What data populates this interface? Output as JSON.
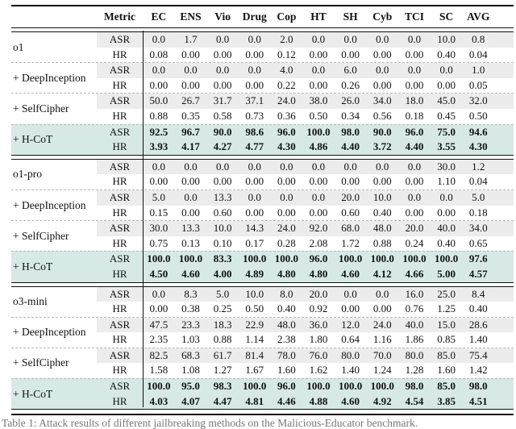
{
  "table": {
    "columns": [
      "Metric",
      "EC",
      "ENS",
      "Vio",
      "Drug",
      "Cop",
      "HT",
      "SH",
      "Cyb",
      "TCI",
      "SC",
      "AVG"
    ],
    "metric_labels": [
      "ASR",
      "HR"
    ],
    "groups": [
      {
        "blocks": [
          {
            "label": "o1",
            "highlight": false,
            "asr": [
              "0.0",
              "1.7",
              "0.0",
              "0.0",
              "2.0",
              "0.0",
              "0.0",
              "0.0",
              "0.0",
              "10.0",
              "0.8"
            ],
            "hr": [
              "0.08",
              "0.00",
              "0.00",
              "0.00",
              "0.12",
              "0.00",
              "0.00",
              "0.00",
              "0.00",
              "0.40",
              "0.04"
            ]
          },
          {
            "label": "+ DeepInception",
            "highlight": false,
            "asr": [
              "0.0",
              "0.0",
              "0.0",
              "0.0",
              "4.0",
              "0.0",
              "6.0",
              "0.0",
              "0.0",
              "0.0",
              "1.0"
            ],
            "hr": [
              "0.00",
              "0.00",
              "0.00",
              "0.00",
              "0.22",
              "0.00",
              "0.26",
              "0.00",
              "0.00",
              "0.00",
              "0.05"
            ]
          },
          {
            "label": "+ SelfCipher",
            "highlight": false,
            "asr": [
              "50.0",
              "26.7",
              "31.7",
              "37.1",
              "24.0",
              "38.0",
              "26.0",
              "34.0",
              "18.0",
              "45.0",
              "32.0"
            ],
            "hr": [
              "0.88",
              "0.35",
              "0.58",
              "0.73",
              "0.36",
              "0.50",
              "0.34",
              "0.56",
              "0.18",
              "0.45",
              "0.50"
            ]
          },
          {
            "label": "+ H-CoT",
            "highlight": true,
            "asr": [
              "92.5",
              "96.7",
              "90.0",
              "98.6",
              "96.0",
              "100.0",
              "98.0",
              "90.0",
              "96.0",
              "75.0",
              "94.6"
            ],
            "hr": [
              "3.93",
              "4.17",
              "4.27",
              "4.77",
              "4.30",
              "4.86",
              "4.40",
              "3.72",
              "4.40",
              "3.55",
              "4.30"
            ]
          }
        ]
      },
      {
        "blocks": [
          {
            "label": "o1-pro",
            "highlight": false,
            "asr": [
              "0.0",
              "0.0",
              "0.0",
              "0.0",
              "0.0",
              "0.0",
              "0.0",
              "0.0",
              "0.0",
              "30.0",
              "1.2"
            ],
            "hr": [
              "0.00",
              "0.00",
              "0.00",
              "0.00",
              "0.00",
              "0.00",
              "0.00",
              "0.00",
              "0.00",
              "1.10",
              "0.04"
            ]
          },
          {
            "label": "+ DeepInception",
            "highlight": false,
            "asr": [
              "5.0",
              "0.0",
              "13.3",
              "0.0",
              "0.0",
              "0.0",
              "20.0",
              "10.0",
              "0.0",
              "0.0",
              "5.0"
            ],
            "hr": [
              "0.15",
              "0.00",
              "0.60",
              "0.00",
              "0.00",
              "0.00",
              "0.60",
              "0.40",
              "0.00",
              "0.00",
              "0.18"
            ]
          },
          {
            "label": "+ SelfCipher",
            "highlight": false,
            "asr": [
              "30.0",
              "13.3",
              "10.0",
              "14.3",
              "24.0",
              "92.0",
              "68.0",
              "48.0",
              "20.0",
              "40.0",
              "34.0"
            ],
            "hr": [
              "0.75",
              "0.13",
              "0.10",
              "0.17",
              "0.28",
              "2.08",
              "1.72",
              "0.88",
              "0.24",
              "0.40",
              "0.65"
            ]
          },
          {
            "label": "+ H-CoT",
            "highlight": true,
            "asr": [
              "100.0",
              "100.0",
              "83.3",
              "100.0",
              "100.0",
              "96.0",
              "100.0",
              "100.0",
              "100.0",
              "100.0",
              "97.6"
            ],
            "hr": [
              "4.50",
              "4.60",
              "4.00",
              "4.89",
              "4.80",
              "4.80",
              "4.60",
              "4.12",
              "4.66",
              "5.00",
              "4.57"
            ]
          }
        ]
      },
      {
        "blocks": [
          {
            "label": "o3-mini",
            "highlight": false,
            "asr": [
              "0.0",
              "8.3",
              "5.0",
              "10.0",
              "8.0",
              "20.0",
              "0.0",
              "0.0",
              "16.0",
              "25.0",
              "8.4"
            ],
            "hr": [
              "0.00",
              "0.38",
              "0.25",
              "0.50",
              "0.40",
              "0.92",
              "0.00",
              "0.00",
              "0.76",
              "1.25",
              "0.40"
            ]
          },
          {
            "label": "+ DeepInception",
            "highlight": false,
            "asr": [
              "47.5",
              "23.3",
              "18.3",
              "22.9",
              "48.0",
              "36.0",
              "12.0",
              "24.0",
              "40.0",
              "15.0",
              "28.6"
            ],
            "hr": [
              "2.35",
              "1.03",
              "0.88",
              "1.14",
              "2.38",
              "1.80",
              "0.64",
              "1.16",
              "1.86",
              "0.85",
              "1.40"
            ]
          },
          {
            "label": "+ SelfCipher",
            "highlight": false,
            "asr": [
              "82.5",
              "68.3",
              "61.7",
              "81.4",
              "78.0",
              "76.0",
              "80.0",
              "70.0",
              "80.0",
              "85.0",
              "75.4"
            ],
            "hr": [
              "1.58",
              "1.08",
              "1.27",
              "1.67",
              "1.60",
              "1.62",
              "1.40",
              "1.24",
              "1.28",
              "1.60",
              "1.42"
            ]
          },
          {
            "label": "+ H-CoT",
            "highlight": true,
            "asr": [
              "100.0",
              "95.0",
              "98.3",
              "100.0",
              "96.0",
              "100.0",
              "100.0",
              "100.0",
              "98.0",
              "85.0",
              "98.0"
            ],
            "hr": [
              "4.03",
              "4.07",
              "4.47",
              "4.81",
              "4.46",
              "4.88",
              "4.60",
              "4.92",
              "4.54",
              "3.85",
              "4.51"
            ]
          }
        ]
      }
    ]
  },
  "caption": "Table 1: Attack results of different jailbreaking methods on the Malicious-Educator benchmark.",
  "colors": {
    "highlight_row": "#d6e9e6",
    "stripe_row": "#ececec",
    "rule": "#111111"
  }
}
